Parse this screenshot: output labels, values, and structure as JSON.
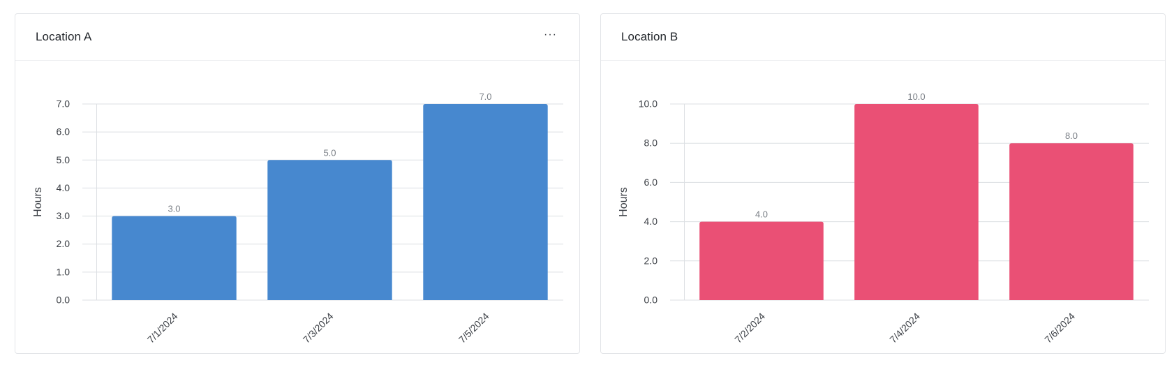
{
  "cards": [
    {
      "title": "Location A",
      "menu_label": "···"
    },
    {
      "title": "Location B",
      "menu_label": ""
    }
  ],
  "colors": {
    "location_a_bar": "#4788cf",
    "location_b_bar": "#ea5075",
    "grid": "#dcdfe3",
    "tick_text": "#3b3f45",
    "value_label": "#7a7f86"
  },
  "chart_data": [
    {
      "type": "bar",
      "title": "Location A",
      "categories": [
        "7/1/2024",
        "7/3/2024",
        "7/5/2024"
      ],
      "values": [
        3.0,
        5.0,
        7.0
      ],
      "value_labels": [
        "3.0",
        "5.0",
        "7.0"
      ],
      "ylabel": "Hours",
      "xlabel": "",
      "ylim": [
        0,
        7
      ],
      "yticks": [
        "0.0",
        "1.0",
        "2.0",
        "3.0",
        "4.0",
        "5.0",
        "6.0",
        "7.0"
      ],
      "grid": true
    },
    {
      "type": "bar",
      "title": "Location B",
      "categories": [
        "7/2/2024",
        "7/4/2024",
        "7/6/2024"
      ],
      "values": [
        4.0,
        10.0,
        8.0
      ],
      "value_labels": [
        "4.0",
        "10.0",
        "8.0"
      ],
      "ylabel": "Hours",
      "xlabel": "",
      "ylim": [
        0,
        10
      ],
      "yticks": [
        "0.0",
        "2.0",
        "4.0",
        "6.0",
        "8.0",
        "10.0"
      ],
      "grid": true
    }
  ]
}
